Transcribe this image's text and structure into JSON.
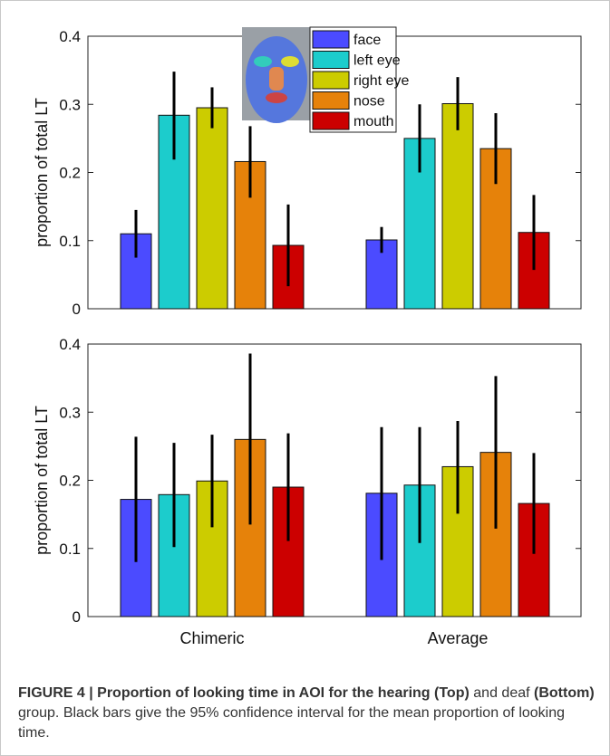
{
  "figure": {
    "caption_label": "FIGURE 4 | Proportion of looking time in AOI for the hearing",
    "caption_top": "(Top)",
    "caption_and": "and",
    "caption_deaf": "deaf",
    "caption_bottom": "(Bottom)",
    "caption_rest": "group. Black bars give the 95% confidence interval for the mean proportion of looking time."
  },
  "colors": {
    "face": "#4b4bff",
    "left eye": "#1ccccc",
    "right eye": "#cccc00",
    "nose": "#e6820a",
    "mouth": "#cc0000"
  },
  "legend_inset_image": "face-map-icon",
  "chart_data": [
    {
      "type": "bar",
      "panel": "top",
      "categories": [
        "Chimeric",
        "Average"
      ],
      "ylabel": "proportion of total LT",
      "xlabel": "",
      "ylim": [
        0,
        0.4
      ],
      "yticks": [
        "0",
        "0.1",
        "0.2",
        "0.3",
        "0.4"
      ],
      "legend": {
        "position": "top-center",
        "entries": [
          "face",
          "left eye",
          "right eye",
          "nose",
          "mouth"
        ]
      },
      "series": [
        {
          "name": "face",
          "values": [
            0.11,
            0.101
          ],
          "ci_low": [
            0.075,
            0.082
          ],
          "ci_high": [
            0.145,
            0.12
          ]
        },
        {
          "name": "left eye",
          "values": [
            0.284,
            0.25
          ],
          "ci_low": [
            0.219,
            0.2
          ],
          "ci_high": [
            0.348,
            0.3
          ]
        },
        {
          "name": "right eye",
          "values": [
            0.295,
            0.301
          ],
          "ci_low": [
            0.265,
            0.262
          ],
          "ci_high": [
            0.325,
            0.34
          ]
        },
        {
          "name": "nose",
          "values": [
            0.216,
            0.235
          ],
          "ci_low": [
            0.163,
            0.183
          ],
          "ci_high": [
            0.268,
            0.287
          ]
        },
        {
          "name": "mouth",
          "values": [
            0.093,
            0.112
          ],
          "ci_low": [
            0.033,
            0.057
          ],
          "ci_high": [
            0.153,
            0.167
          ]
        }
      ]
    },
    {
      "type": "bar",
      "panel": "bottom",
      "categories": [
        "Chimeric",
        "Average"
      ],
      "ylabel": "proportion of total LT",
      "xlabel": "",
      "ylim": [
        0,
        0.4
      ],
      "yticks": [
        "0",
        "0.1",
        "0.2",
        "0.3",
        "0.4"
      ],
      "series": [
        {
          "name": "face",
          "values": [
            0.172,
            0.181
          ],
          "ci_low": [
            0.08,
            0.083
          ],
          "ci_high": [
            0.264,
            0.278
          ]
        },
        {
          "name": "left eye",
          "values": [
            0.179,
            0.193
          ],
          "ci_low": [
            0.102,
            0.108
          ],
          "ci_high": [
            0.255,
            0.278
          ]
        },
        {
          "name": "right eye",
          "values": [
            0.199,
            0.22
          ],
          "ci_low": [
            0.131,
            0.151
          ],
          "ci_high": [
            0.267,
            0.287
          ]
        },
        {
          "name": "nose",
          "values": [
            0.26,
            0.241
          ],
          "ci_low": [
            0.135,
            0.129
          ],
          "ci_high": [
            0.386,
            0.353
          ]
        },
        {
          "name": "mouth",
          "values": [
            0.19,
            0.166
          ],
          "ci_low": [
            0.111,
            0.092
          ],
          "ci_high": [
            0.269,
            0.24
          ]
        }
      ]
    }
  ]
}
